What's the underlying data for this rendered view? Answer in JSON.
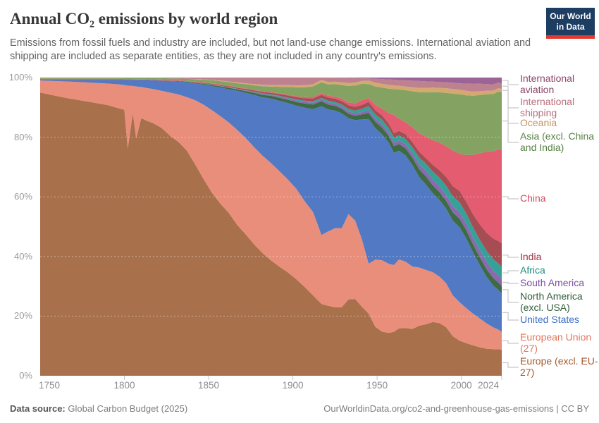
{
  "header": {
    "title": "Annual CO₂ emissions by world region",
    "subtitle": "Emissions from fossil fuels and industry are included, but not land-use change emissions. International aviation and shipping are included as separate entities, as they are not included in any country's emissions.",
    "logo_line1": "Our World",
    "logo_line2": "in Data",
    "logo_bg_color": "#1d3d63",
    "logo_accent_color": "#e2392e"
  },
  "footer": {
    "source_label": "Data source:",
    "source_text": " Global Carbon Budget (2025)",
    "link_text": "OurWorldinData.org/co2-and-greenhouse-gas-emissions | CC BY"
  },
  "chart_data": {
    "type": "area",
    "stacked": true,
    "normalized_percent": true,
    "x_range": [
      1750,
      2024
    ],
    "y_range_percent": [
      0,
      100
    ],
    "grid": "dashed horizontal at 20/40/60/80%",
    "legend_position": "right",
    "y_tick_labels": [
      "0%",
      "20%",
      "40%",
      "60%",
      "80%",
      "100%"
    ],
    "x_tick_labels": [
      "1750",
      "1800",
      "1850",
      "1900",
      "1950",
      "2000",
      "2024"
    ],
    "x": [
      1750,
      1765,
      1780,
      1790,
      1797,
      1800,
      1802,
      1805,
      1807,
      1810,
      1813,
      1817,
      1822,
      1827,
      1832,
      1837,
      1842,
      1847,
      1852,
      1857,
      1862,
      1867,
      1872,
      1877,
      1882,
      1887,
      1892,
      1897,
      1902,
      1907,
      1912,
      1917,
      1921,
      1925,
      1929,
      1933,
      1937,
      1941,
      1945,
      1949,
      1953,
      1957,
      1960,
      1963,
      1967,
      1971,
      1975,
      1979,
      1983,
      1987,
      1991,
      1995,
      1999,
      2003,
      2007,
      2011,
      2015,
      2019,
      2022,
      2024
    ],
    "series_note": "values are approximate % shares per year, listed bottom-to-top in stack order; renderer normalizes each year to 100%",
    "series": [
      {
        "id": "europe_ex",
        "name": "Europe (excl. EU-27)",
        "fill": "#a9714b",
        "label_color": "#a2592e",
        "values": [
          95,
          93,
          91.5,
          90.5,
          89.5,
          89,
          76,
          88,
          80,
          87,
          86,
          85.5,
          84,
          81,
          79,
          76,
          71,
          66,
          61,
          57,
          54,
          50,
          47,
          44,
          41,
          38.5,
          36.5,
          34.5,
          32,
          29.5,
          26.5,
          24,
          23.5,
          23,
          23,
          25.5,
          26,
          23,
          20,
          16,
          14.5,
          14,
          14.5,
          15.5,
          15.5,
          15,
          15.8,
          16.3,
          17,
          16.8,
          15.5,
          12.8,
          11.5,
          10.8,
          10.2,
          9.6,
          9.2,
          9,
          9,
          8.8
        ]
      },
      {
        "id": "eu27",
        "name": "European Union (27)",
        "fill": "#e98e7b",
        "label_color": "#e0765c",
        "values": [
          4,
          5.5,
          6.5,
          7.2,
          8,
          8.3,
          21,
          9,
          17.5,
          10.5,
          11,
          11.5,
          12.5,
          14.5,
          16,
          18,
          21.5,
          25,
          27.5,
          29,
          30,
          31.5,
          32,
          32.5,
          32.5,
          32.5,
          32,
          31,
          30,
          28.5,
          27.5,
          23,
          25,
          26.5,
          26.5,
          28.5,
          26.5,
          22.5,
          16,
          22,
          23.5,
          22.5,
          22,
          22.5,
          21.5,
          20,
          18.3,
          17.2,
          15.8,
          14.8,
          14,
          13.2,
          12.6,
          11.6,
          10.6,
          9.7,
          8.6,
          7.4,
          6.6,
          6
        ]
      },
      {
        "id": "us",
        "name": "United States",
        "fill": "#5279c4",
        "label_color": "#3c6ec4",
        "values": [
          0.2,
          0.5,
          0.9,
          1.2,
          1.5,
          1.7,
          1.9,
          2,
          2.2,
          2.4,
          2.7,
          3,
          3.4,
          3.9,
          4.4,
          5,
          5.7,
          6.7,
          8,
          9.5,
          11,
          13,
          15,
          17.5,
          19.5,
          21.5,
          23.5,
          25.5,
          27.5,
          31,
          34,
          43,
          41,
          39.5,
          38.5,
          32,
          34,
          40,
          46.5,
          43,
          41.5,
          39.5,
          37,
          35.5,
          34.5,
          32.5,
          28.5,
          27,
          25,
          24.5,
          23.8,
          24.2,
          24.6,
          23,
          20.5,
          18,
          15.8,
          14.2,
          13.4,
          13
        ]
      },
      {
        "id": "na_ex_us",
        "name": "North America (excl. USA)",
        "fill": "#3d6b44",
        "label_color": "#2f5e3c",
        "values": [
          0,
          0,
          0,
          0,
          0,
          0,
          0,
          0,
          0,
          0,
          0,
          0,
          0.1,
          0.1,
          0.1,
          0.2,
          0.2,
          0.3,
          0.4,
          0.4,
          0.5,
          0.5,
          0.6,
          0.7,
          0.8,
          0.9,
          1,
          1.1,
          1.2,
          1.4,
          1.5,
          1.7,
          1.6,
          1.6,
          1.6,
          1.5,
          1.5,
          1.7,
          1.9,
          2.1,
          2.2,
          2.2,
          2.2,
          2.2,
          2.3,
          2.4,
          2.5,
          2.6,
          2.5,
          2.5,
          2.5,
          2.7,
          2.8,
          2.8,
          2.7,
          2.6,
          2.6,
          2.5,
          2.5,
          2.5
        ]
      },
      {
        "id": "s_america",
        "name": "South America",
        "fill": "#8a69ae",
        "label_color": "#7c4ea2",
        "values": [
          0,
          0,
          0,
          0,
          0,
          0,
          0,
          0,
          0,
          0,
          0,
          0,
          0,
          0,
          0,
          0,
          0,
          0,
          0.1,
          0.1,
          0.1,
          0.1,
          0.2,
          0.2,
          0.3,
          0.3,
          0.4,
          0.4,
          0.5,
          0.5,
          0.6,
          0.6,
          0.7,
          0.7,
          0.7,
          0.8,
          0.8,
          0.8,
          0.9,
          1,
          1.1,
          1.1,
          1.2,
          1.2,
          1.3,
          1.4,
          1.6,
          1.7,
          1.8,
          1.8,
          1.8,
          2,
          2.1,
          2.2,
          2.3,
          2.4,
          2.5,
          2.5,
          2.4,
          2.4
        ]
      },
      {
        "id": "africa",
        "name": "Africa",
        "fill": "#36a198",
        "label_color": "#1d8a80",
        "values": [
          0,
          0,
          0,
          0,
          0,
          0,
          0,
          0,
          0,
          0,
          0,
          0,
          0,
          0,
          0,
          0,
          0,
          0.1,
          0.1,
          0.1,
          0.1,
          0.1,
          0.1,
          0.2,
          0.2,
          0.2,
          0.3,
          0.3,
          0.4,
          0.4,
          0.5,
          0.5,
          0.6,
          0.6,
          0.7,
          0.8,
          0.9,
          1.1,
          1.3,
          1.4,
          1.5,
          1.5,
          1.6,
          1.6,
          1.7,
          1.9,
          2.1,
          2.3,
          2.6,
          2.8,
          3,
          3.2,
          3.3,
          3.3,
          3.4,
          3.5,
          3.7,
          3.9,
          4,
          4
        ]
      },
      {
        "id": "india",
        "name": "India",
        "fill": "#a64d53",
        "label_color": "#9e2f40",
        "values": [
          0.1,
          0.1,
          0.1,
          0.1,
          0.1,
          0.1,
          0.1,
          0.1,
          0.1,
          0.1,
          0.1,
          0.1,
          0.1,
          0.1,
          0.1,
          0.1,
          0.1,
          0.2,
          0.2,
          0.2,
          0.3,
          0.3,
          0.4,
          0.4,
          0.5,
          0.5,
          0.6,
          0.7,
          0.7,
          0.8,
          0.9,
          1,
          1.1,
          1.1,
          1.1,
          1.3,
          1.3,
          1.3,
          1.4,
          1.4,
          1.4,
          1.4,
          1.5,
          1.5,
          1.6,
          1.7,
          1.8,
          1.8,
          2.1,
          2.4,
          2.8,
          3.3,
          3.7,
          3.9,
          4.4,
          5.2,
          6.2,
          7,
          7.6,
          8
        ]
      },
      {
        "id": "china",
        "name": "China",
        "fill": "#e35c6f",
        "label_color": "#d64a60",
        "values": [
          0.3,
          0.3,
          0.3,
          0.3,
          0.3,
          0.2,
          0.2,
          0.2,
          0.2,
          0.2,
          0.2,
          0.2,
          0.2,
          0.2,
          0.2,
          0.2,
          0.2,
          0.2,
          0.2,
          0.2,
          0.2,
          0.2,
          0.2,
          0.2,
          0.2,
          0.2,
          0.2,
          0.3,
          0.3,
          0.4,
          0.5,
          0.6,
          0.6,
          0.7,
          0.8,
          0.9,
          1.2,
          1.5,
          1.2,
          1.8,
          2.2,
          3.5,
          6,
          4,
          3.8,
          4.8,
          5.8,
          6.8,
          7.8,
          8.8,
          9.8,
          11.5,
          12.2,
          15.5,
          20,
          24,
          27.5,
          29.5,
          31,
          31.5
        ]
      },
      {
        "id": "asia_ex",
        "name": "Asia (excl. China and India)",
        "fill": "#84a363",
        "label_color": "#578145",
        "values": [
          0.4,
          0.4,
          0.4,
          0.4,
          0.4,
          0.4,
          0.4,
          0.4,
          0.4,
          0.4,
          0.4,
          0.4,
          0.5,
          0.5,
          0.6,
          0.7,
          0.8,
          0.9,
          1,
          1.1,
          1.2,
          1.3,
          1.4,
          1.5,
          1.7,
          1.9,
          2.2,
          2.6,
          3,
          3.3,
          3.5,
          3.6,
          3.8,
          4.2,
          4.6,
          5.5,
          6,
          5.5,
          4.5,
          6,
          7,
          8,
          8.5,
          9.5,
          10.5,
          11.5,
          13,
          14,
          15.2,
          16,
          17,
          18.5,
          19.5,
          19.8,
          19.8,
          19.6,
          19.5,
          19.5,
          19.5,
          19.5
        ]
      },
      {
        "id": "oceania",
        "name": "Oceania",
        "fill": "#d3a871",
        "label_color": "#c0955e",
        "values": [
          0,
          0,
          0,
          0,
          0,
          0,
          0,
          0,
          0,
          0,
          0,
          0,
          0,
          0,
          0,
          0,
          0.1,
          0.1,
          0.1,
          0.2,
          0.2,
          0.3,
          0.3,
          0.4,
          0.5,
          0.5,
          0.6,
          0.6,
          0.6,
          0.7,
          0.7,
          0.8,
          0.8,
          0.8,
          0.9,
          1,
          1,
          1,
          1.1,
          1.2,
          1.2,
          1.2,
          1.2,
          1.2,
          1.2,
          1.3,
          1.3,
          1.4,
          1.4,
          1.4,
          1.5,
          1.5,
          1.5,
          1.5,
          1.4,
          1.3,
          1.2,
          1.2,
          1.1,
          1.1
        ]
      },
      {
        "id": "shipping",
        "name": "International shipping",
        "fill": "#bd8190",
        "label_color": "#b7707e",
        "values": [
          0,
          0,
          0,
          0,
          0,
          0.1,
          0.1,
          0.1,
          0.1,
          0.1,
          0.1,
          0.2,
          0.2,
          0.3,
          0.3,
          0.4,
          0.5,
          0.6,
          0.8,
          1,
          1.3,
          1.6,
          1.9,
          2.2,
          2.4,
          2.5,
          2.5,
          2.5,
          2.6,
          2.5,
          2.2,
          0.8,
          1.5,
          1.3,
          1.5,
          1.7,
          1.5,
          0.8,
          0.7,
          1.3,
          1.6,
          1.8,
          1.9,
          1.9,
          2,
          2.1,
          2.2,
          2.1,
          1.9,
          1.9,
          1.9,
          2,
          2.1,
          2.4,
          2.6,
          2.5,
          2.3,
          2.1,
          1.9,
          1.8
        ]
      },
      {
        "id": "aviation",
        "name": "International aviation",
        "fill": "#9a6596",
        "label_color": "#8c4569",
        "values": [
          0,
          0,
          0,
          0,
          0,
          0,
          0,
          0,
          0,
          0,
          0,
          0,
          0,
          0,
          0,
          0,
          0,
          0,
          0,
          0,
          0,
          0,
          0,
          0,
          0,
          0,
          0,
          0,
          0,
          0,
          0,
          0,
          0,
          0.1,
          0.1,
          0.1,
          0.2,
          0.3,
          0.3,
          0.4,
          0.5,
          0.6,
          0.7,
          0.8,
          0.9,
          1,
          1.1,
          1.2,
          1.3,
          1.4,
          1.5,
          1.7,
          1.9,
          2,
          2.1,
          2.1,
          2.2,
          2.3,
          1.7,
          2
        ]
      }
    ]
  },
  "legend": {
    "order_top_to_bottom": [
      "aviation",
      "shipping",
      "oceania",
      "asia_ex",
      "china",
      "india",
      "africa",
      "s_america",
      "na_ex_us",
      "us",
      "eu27",
      "europe_ex"
    ],
    "labels": {
      "aviation": "International aviation",
      "shipping": "International shipping",
      "oceania": "Oceania",
      "asia_ex": "Asia (excl. China and India)",
      "china": "China",
      "india": "India",
      "africa": "Africa",
      "s_america": "South America",
      "na_ex_us": "North America (excl. USA)",
      "us": "United States",
      "eu27": "European Union (27)",
      "europe_ex": "Europe (excl. EU-27)"
    }
  }
}
